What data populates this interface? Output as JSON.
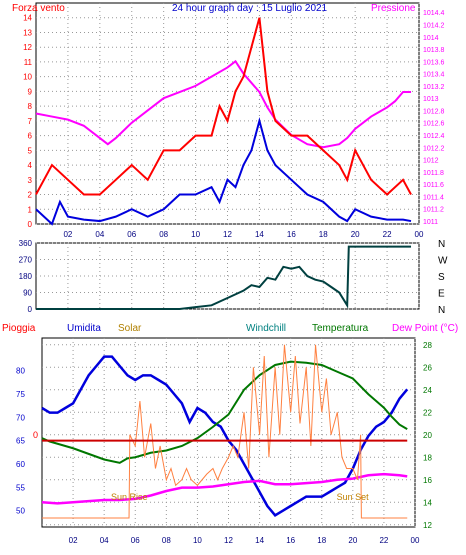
{
  "chart_data": [
    {
      "type": "line",
      "title": "24 hour graph day : 15 Luglio 2021",
      "left_label": "Forza vento",
      "right_label": "Pressione",
      "x_ticks": [
        "02",
        "04",
        "06",
        "08",
        "10",
        "12",
        "14",
        "16",
        "18",
        "20",
        "22",
        "00"
      ],
      "y_left_ticks": [
        "0",
        "1",
        "2",
        "3",
        "4",
        "5",
        "6",
        "7",
        "8",
        "9",
        "10",
        "11",
        "12",
        "13",
        "14"
      ],
      "y_right_ticks": [
        "1011",
        "1011.2",
        "1011.4",
        "1011.6",
        "1011.8",
        "1012",
        "1012.2",
        "1012.4",
        "1012.6",
        "1012.8",
        "1013",
        "1013.2",
        "1013.4",
        "1013.6",
        "1013.8",
        "1014",
        "1014.2",
        "1014.4"
      ],
      "ylim_left": [
        0,
        15
      ],
      "ylim_right": [
        1010.95,
        1014.55
      ],
      "series": [
        {
          "color": "#ff00ff",
          "axis": "right",
          "x": [
            0,
            1,
            2,
            3,
            4,
            4.5,
            5,
            6,
            7,
            8,
            9,
            10,
            11,
            12,
            12.5,
            13,
            14,
            14.5,
            15,
            16,
            17,
            18,
            19,
            19.5,
            20,
            21,
            22,
            22.5,
            23,
            23.5
          ],
          "values": [
            1012.75,
            1012.7,
            1012.65,
            1012.55,
            1012.35,
            1012.25,
            1012.35,
            1012.6,
            1012.8,
            1013.0,
            1013.1,
            1013.2,
            1013.35,
            1013.5,
            1013.6,
            1013.4,
            1013.1,
            1012.85,
            1012.65,
            1012.4,
            1012.25,
            1012.2,
            1012.25,
            1012.35,
            1012.5,
            1012.7,
            1012.85,
            1012.95,
            1013.1,
            1013.1
          ]
        },
        {
          "color": "#0000dd",
          "axis": "left",
          "x": [
            0,
            1,
            1.5,
            2,
            3,
            4,
            5,
            6,
            7,
            8,
            9,
            10,
            11,
            11.5,
            12,
            12.5,
            13,
            13.5,
            14,
            14.5,
            15,
            16,
            17,
            18,
            19,
            19.5,
            20,
            21,
            22,
            23,
            23.5
          ],
          "values": [
            1,
            0,
            1.5,
            0.5,
            0.3,
            0.2,
            0.5,
            1,
            0.5,
            1,
            2,
            2,
            2.5,
            1.5,
            3,
            2.5,
            4,
            5,
            7,
            5,
            4,
            3,
            2,
            1.5,
            0.5,
            0.2,
            1,
            0.5,
            0.3,
            0.3,
            0.2
          ]
        },
        {
          "color": "#ff0000",
          "axis": "left",
          "x": [
            0,
            1,
            2,
            3,
            4,
            5,
            6,
            7,
            8,
            9,
            10,
            11,
            11.5,
            12,
            12.5,
            13,
            13.5,
            14,
            14.5,
            15,
            16,
            17,
            18,
            19,
            19.5,
            20,
            21,
            22,
            23,
            23.5
          ],
          "values": [
            2,
            4,
            3,
            2,
            2,
            3,
            4,
            3,
            5,
            5,
            6,
            6,
            8,
            7,
            9,
            10,
            12,
            14,
            9,
            7,
            6,
            6,
            5,
            4,
            3,
            5,
            3,
            2,
            3,
            2
          ]
        }
      ]
    },
    {
      "type": "line",
      "x_ticks": [],
      "y_left_ticks": [
        "0",
        "90",
        "180",
        "270",
        "360"
      ],
      "y_right_labels": [
        "N",
        "W",
        "S",
        "E",
        "N"
      ],
      "ylim": [
        0,
        360
      ],
      "series": [
        {
          "color": "#004040",
          "x": [
            0,
            9,
            10,
            11,
            12,
            13,
            13.5,
            14,
            14.5,
            15,
            15.5,
            16,
            16.5,
            17,
            17.5,
            18,
            18.5,
            19,
            19.5,
            19.6,
            23.5
          ],
          "values": [
            0,
            0,
            10,
            20,
            60,
            100,
            130,
            120,
            170,
            160,
            230,
            220,
            230,
            180,
            160,
            150,
            120,
            90,
            20,
            340,
            340
          ]
        }
      ]
    },
    {
      "type": "line",
      "labels": {
        "pioggia": "Pioggia",
        "umidita": "Umidita",
        "solar": "Solar",
        "windchill": "Windchill",
        "temperatura": "Temperatura",
        "dewpoint": "Dew Point (°C)",
        "sunrise": "Sun Rise",
        "sunset": "Sun Set",
        "zero": "0"
      },
      "x_ticks": [
        "02",
        "04",
        "06",
        "08",
        "10",
        "12",
        "14",
        "16",
        "18",
        "20",
        "22",
        "00"
      ],
      "y_left_ticks": [
        "50",
        "55",
        "60",
        "65",
        "70",
        "75",
        "80"
      ],
      "y_right_ticks": [
        "12",
        "14",
        "16",
        "18",
        "20",
        "22",
        "24",
        "26",
        "28"
      ],
      "ylim_left": [
        46.5,
        87
      ],
      "ylim_right": [
        11.8,
        28.6
      ],
      "rain_level": 65,
      "sunrise_hour": 5.6,
      "sunset_hour": 20.5,
      "series": [
        {
          "name": "Umidita",
          "color": "#0000dd",
          "axis": "left",
          "x": [
            0,
            0.5,
            1,
            1.5,
            2,
            3,
            3.5,
            4,
            4.5,
            5,
            5.5,
            6,
            6.5,
            7,
            7.5,
            8,
            8.5,
            9,
            9.5,
            10,
            10.5,
            11,
            11.5,
            12,
            12.5,
            13,
            13.5,
            14,
            14.5,
            15,
            15.5,
            16,
            16.5,
            17,
            17.5,
            18,
            18.5,
            19,
            19.5,
            20,
            20.5,
            21,
            21.5,
            22,
            22.5,
            23,
            23.5
          ],
          "values": [
            72,
            71,
            71,
            72,
            73,
            79,
            81,
            83,
            83,
            81,
            79,
            78,
            79,
            79,
            78,
            77,
            75,
            73,
            69,
            72,
            71,
            69,
            68,
            65,
            63,
            60,
            57,
            54,
            51,
            49,
            50,
            51,
            52,
            53,
            53,
            53,
            54,
            55,
            56,
            59,
            63,
            66,
            68,
            69,
            71,
            74,
            76
          ]
        },
        {
          "name": "Temperatura",
          "color": "#007700",
          "axis": "right",
          "x": [
            0,
            0.5,
            1,
            2,
            3,
            4,
            5,
            5.5,
            6,
            7,
            8,
            9,
            10,
            11,
            12,
            13,
            14,
            15,
            16,
            17,
            18,
            19,
            20,
            21,
            22,
            22.5,
            23,
            23.5
          ],
          "values": [
            19.7,
            19.4,
            19.2,
            18.8,
            18.3,
            17.8,
            17.5,
            17.9,
            18.0,
            18.4,
            18.6,
            19.0,
            19.7,
            20.7,
            21.8,
            24.0,
            25.3,
            26.2,
            26.5,
            26.4,
            26.2,
            25.6,
            25.0,
            23.6,
            22.4,
            21.6,
            20.9,
            20.5
          ]
        },
        {
          "name": "Dew Point (°C)",
          "color": "#ff00ff",
          "axis": "right",
          "x": [
            0,
            1,
            2,
            3,
            4,
            5,
            6,
            7,
            8,
            9,
            10,
            11,
            12,
            13,
            14,
            15,
            16,
            17,
            18,
            19,
            20,
            21,
            22,
            23,
            23.5
          ],
          "values": [
            14.0,
            13.9,
            14.0,
            14.1,
            14.2,
            14.2,
            14.3,
            14.6,
            15.0,
            15.3,
            15.3,
            15.4,
            15.6,
            15.8,
            15.9,
            15.6,
            15.6,
            15.7,
            15.8,
            16.0,
            16.1,
            16.4,
            16.5,
            16.4,
            16.3
          ]
        },
        {
          "name": "Solar",
          "color": "#ff8040",
          "axis": "right",
          "x": [
            0,
            5.6,
            5.65,
            6,
            6.3,
            6.6,
            7,
            7.3,
            7.6,
            8,
            8.3,
            8.6,
            9,
            9.3,
            9.6,
            10,
            10.3,
            10.6,
            11,
            11.3,
            11.6,
            12,
            12.3,
            12.6,
            13,
            13.3,
            13.6,
            14,
            14.3,
            14.6,
            15,
            15.3,
            15.6,
            16,
            16.3,
            16.6,
            17,
            17.3,
            17.6,
            18,
            18.3,
            18.6,
            19,
            19.3,
            19.6,
            20,
            20.3,
            20.5,
            20.55,
            23.5
          ],
          "values": [
            12.6,
            12.6,
            20,
            19,
            23,
            18,
            21,
            17,
            19,
            16,
            17,
            15.5,
            16,
            17,
            16,
            15.5,
            16,
            16.5,
            17,
            16,
            17,
            18,
            19,
            18,
            22,
            17,
            26,
            20,
            27,
            18,
            26,
            20,
            28,
            22,
            27,
            21,
            26,
            19,
            28,
            22,
            25,
            20,
            22,
            18,
            17,
            17,
            16,
            20,
            12.6,
            12.6
          ]
        },
        {
          "name": "Pioggia",
          "color": "#cc0000",
          "axis": "left",
          "x": [
            0,
            23.5
          ],
          "values": [
            65,
            65
          ]
        }
      ]
    }
  ]
}
